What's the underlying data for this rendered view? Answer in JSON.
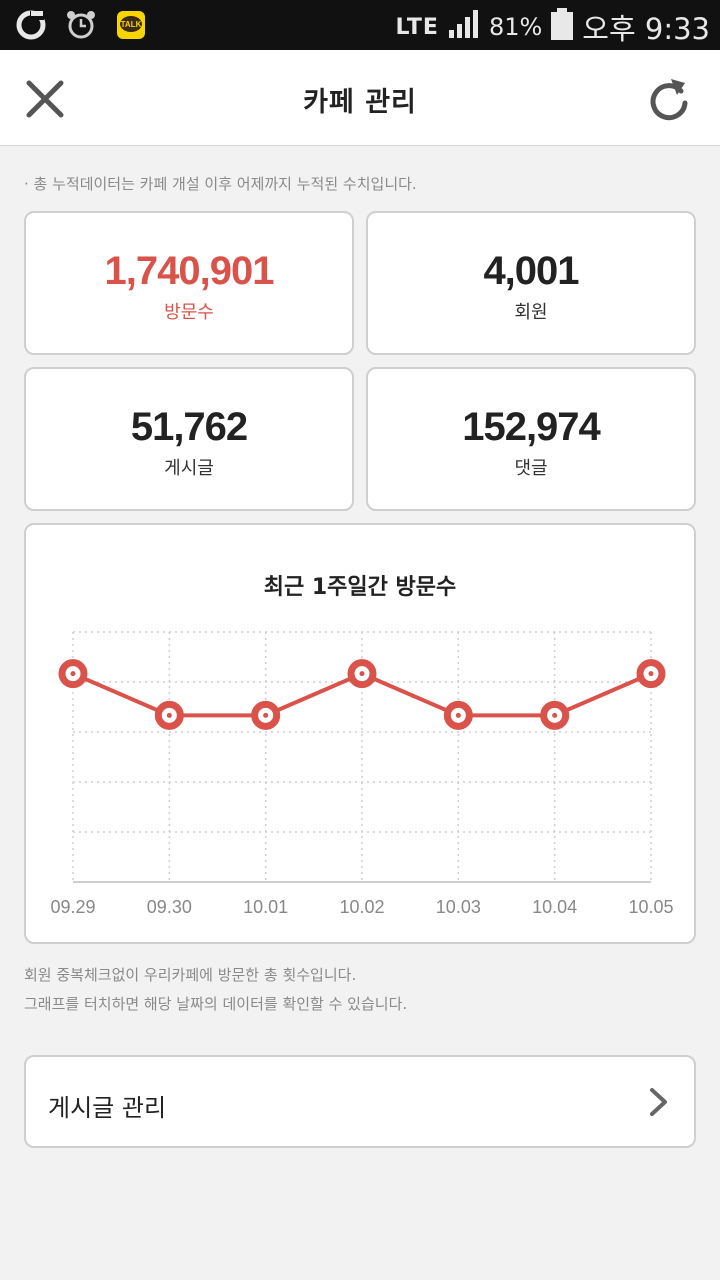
{
  "status_bar": {
    "network": "LTE",
    "battery_percent": "81%",
    "time": "오후 9:33",
    "left_icons": [
      "olleh-icon",
      "alarm-icon",
      "kakaotalk-icon"
    ]
  },
  "header": {
    "title": "카페 관리",
    "close_icon": "close-icon",
    "refresh_icon": "refresh-icon"
  },
  "note_top": "· 총 누적데이터는 카페 개설 이후 어제까지 누적된 수치입니다.",
  "stats": {
    "visits": {
      "value": "1,740,901",
      "label": "방문수"
    },
    "members": {
      "value": "4,001",
      "label": "회원"
    },
    "posts": {
      "value": "51,762",
      "label": "게시글"
    },
    "comments": {
      "value": "152,974",
      "label": "댓글"
    }
  },
  "chart": {
    "title": "최근 1주일간 방문수"
  },
  "chart_data": {
    "type": "line",
    "title": "최근 1주일간 방문수",
    "categories": [
      "09.29",
      "09.30",
      "10.01",
      "10.02",
      "10.03",
      "10.04",
      "10.05"
    ],
    "series": [
      {
        "values": [
          2,
          1,
          1,
          2,
          1,
          1,
          2
        ]
      }
    ],
    "ylim": [
      -3,
      3
    ],
    "grid": true,
    "color": "#d9534a"
  },
  "notes": {
    "line1": "회원 중복체크없이 우리카페에 방문한 총 횟수입니다.",
    "line2": "그래프를 터치하면 해당 날짜의 데이터를 확인할 수 있습니다."
  },
  "manage": {
    "label": "게시글 관리",
    "arrow_icon": "chevron-right-icon"
  },
  "colors": {
    "accent": "#d9534a",
    "background": "#f2f2f2",
    "card_border": "#cfcfcf"
  }
}
